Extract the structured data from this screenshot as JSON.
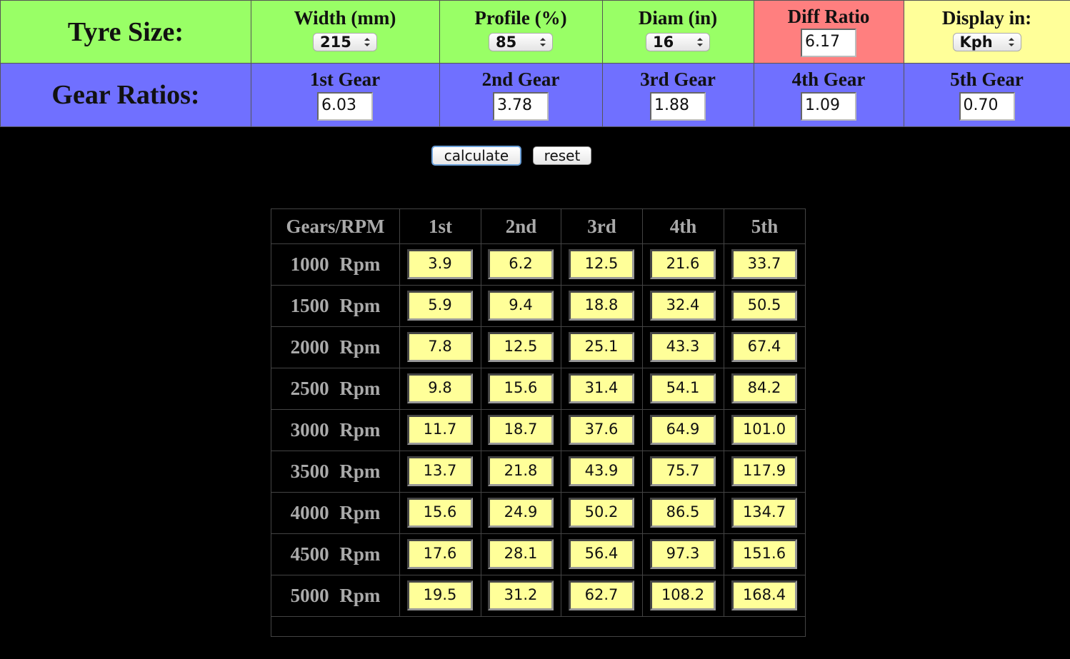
{
  "header": {
    "tyre_label": "Tyre Size:",
    "tyre_fields": [
      {
        "label": "Width (mm)",
        "value": "215"
      },
      {
        "label": "Profile (%)",
        "value": "85"
      },
      {
        "label": "Diam (in)",
        "value": "16"
      },
      {
        "label": "Diff Ratio",
        "value": "6.17"
      },
      {
        "label": "Display in:",
        "value": "Kph"
      }
    ],
    "gear_label": "Gear Ratios:",
    "gear_fields": [
      {
        "label": "1st Gear",
        "value": "6.03"
      },
      {
        "label": "2nd Gear",
        "value": "3.78"
      },
      {
        "label": "3rd Gear",
        "value": "1.88"
      },
      {
        "label": "4th Gear",
        "value": "1.09"
      },
      {
        "label": "5th Gear",
        "value": "0.70"
      }
    ]
  },
  "buttons": [
    "calculate",
    "reset"
  ],
  "table": {
    "header": [
      "Gears/RPM",
      "1st",
      "2nd",
      "3rd",
      "4th",
      "5th"
    ],
    "rows": [
      {
        "rpm": "1000 Rpm",
        "speeds": [
          "3.9",
          "6.2",
          "12.5",
          "21.6",
          "33.7"
        ]
      },
      {
        "rpm": "1500 Rpm",
        "speeds": [
          "5.9",
          "9.4",
          "18.8",
          "32.4",
          "50.5"
        ]
      },
      {
        "rpm": "2000 Rpm",
        "speeds": [
          "7.8",
          "12.5",
          "25.1",
          "43.3",
          "67.4"
        ]
      },
      {
        "rpm": "2500 Rpm",
        "speeds": [
          "9.8",
          "15.6",
          "31.4",
          "54.1",
          "84.2"
        ]
      },
      {
        "rpm": "3000 Rpm",
        "speeds": [
          "11.7",
          "18.7",
          "37.6",
          "64.9",
          "101.0"
        ]
      },
      {
        "rpm": "3500 Rpm",
        "speeds": [
          "13.7",
          "21.8",
          "43.9",
          "75.7",
          "117.9"
        ]
      },
      {
        "rpm": "4000 Rpm",
        "speeds": [
          "15.6",
          "24.9",
          "50.2",
          "86.5",
          "134.7"
        ]
      },
      {
        "rpm": "4500 Rpm",
        "speeds": [
          "17.6",
          "28.1",
          "56.4",
          "97.3",
          "151.6"
        ]
      },
      {
        "rpm": "5000 Rpm",
        "speeds": [
          "19.5",
          "31.2",
          "62.7",
          "108.2",
          "168.4"
        ]
      }
    ]
  }
}
